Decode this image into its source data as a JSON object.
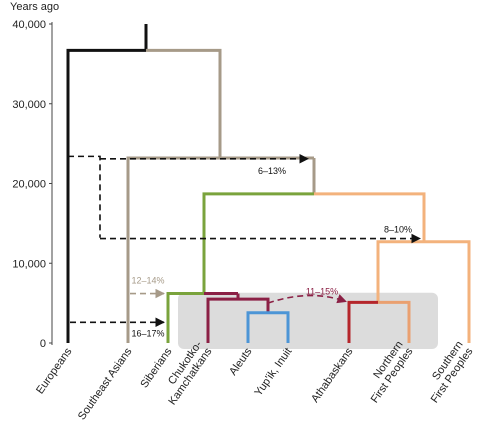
{
  "chart_data": {
    "type": "tree",
    "title": "",
    "ylabel": "Years ago",
    "ylim": [
      0,
      40000
    ],
    "yticks": [
      0,
      10000,
      20000,
      30000,
      40000
    ],
    "ytick_labels": [
      "0",
      "10,000",
      "20,000",
      "30,000",
      "40,000"
    ],
    "grid": false,
    "colors": {
      "black": "#111111",
      "grey": "#a69a88",
      "green": "#7aa33c",
      "maroon": "#8b2045",
      "blue": "#4c95d6",
      "red": "#b5262b",
      "lightorange": "#eaa070",
      "orange": "#f3b27c",
      "migration_grey": "#a69a88",
      "migration_maroon": "#8b2045",
      "dashed_black": "#111111",
      "shade": "#dcdcdc"
    },
    "leaves": [
      {
        "key": "europeans",
        "label": "Europeans"
      },
      {
        "key": "southeast_asians",
        "label": "Southeast Asians"
      },
      {
        "key": "siberians",
        "label": "Siberians"
      },
      {
        "key": "chukotko",
        "label": "Chukotko-\nKamchatkans"
      },
      {
        "key": "aleuts",
        "label": "Aleuts"
      },
      {
        "key": "yupik",
        "label": "Yup'ik, Inuit"
      },
      {
        "key": "athabaskans",
        "label": "Athabaskans"
      },
      {
        "key": "northern",
        "label": "Northern\nFirst Peoples"
      },
      {
        "key": "southern",
        "label": "Southern\nFirst Peoples"
      }
    ],
    "node_times": {
      "root": 36700,
      "split_sea": 36700,
      "split_ne_asia": 23200,
      "split_ancestral": 18700,
      "split_na": 12700,
      "split_siberia": 6200,
      "split_paleo": 6200,
      "split_chuk": 5500,
      "split_aleut": 3800,
      "split_nfp": 5100
    },
    "migrations": [
      {
        "from": "europeans",
        "to": "ne_asia_stem",
        "time": 23300,
        "percent": "6–13%",
        "color": "dashed_black"
      },
      {
        "from": "europeans",
        "to": "na_stem",
        "time": 13200,
        "percent": "8–10%",
        "color": "dashed_black"
      },
      {
        "from": "southeast_asians",
        "to": "siberians",
        "time": 6200,
        "percent": "12–14%",
        "color": "migration_grey"
      },
      {
        "from": "europeans",
        "to": "siberians",
        "time": 2600,
        "percent": "16–17%",
        "color": "dashed_black"
      },
      {
        "from": "chukotko_aleut",
        "to": "athabaskans",
        "time": 5500,
        "percent": "11–15%",
        "color": "migration_maroon"
      }
    ]
  }
}
